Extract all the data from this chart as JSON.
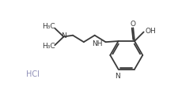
{
  "bg_color": "#ffffff",
  "line_color": "#3a3a3a",
  "hcl_color": "#9090b8",
  "line_width": 1.3,
  "font_size": 6.5,
  "fig_width": 2.26,
  "fig_height": 1.24,
  "dpi": 100,
  "xlim": [
    0,
    10
  ],
  "ylim": [
    0,
    5.5
  ]
}
